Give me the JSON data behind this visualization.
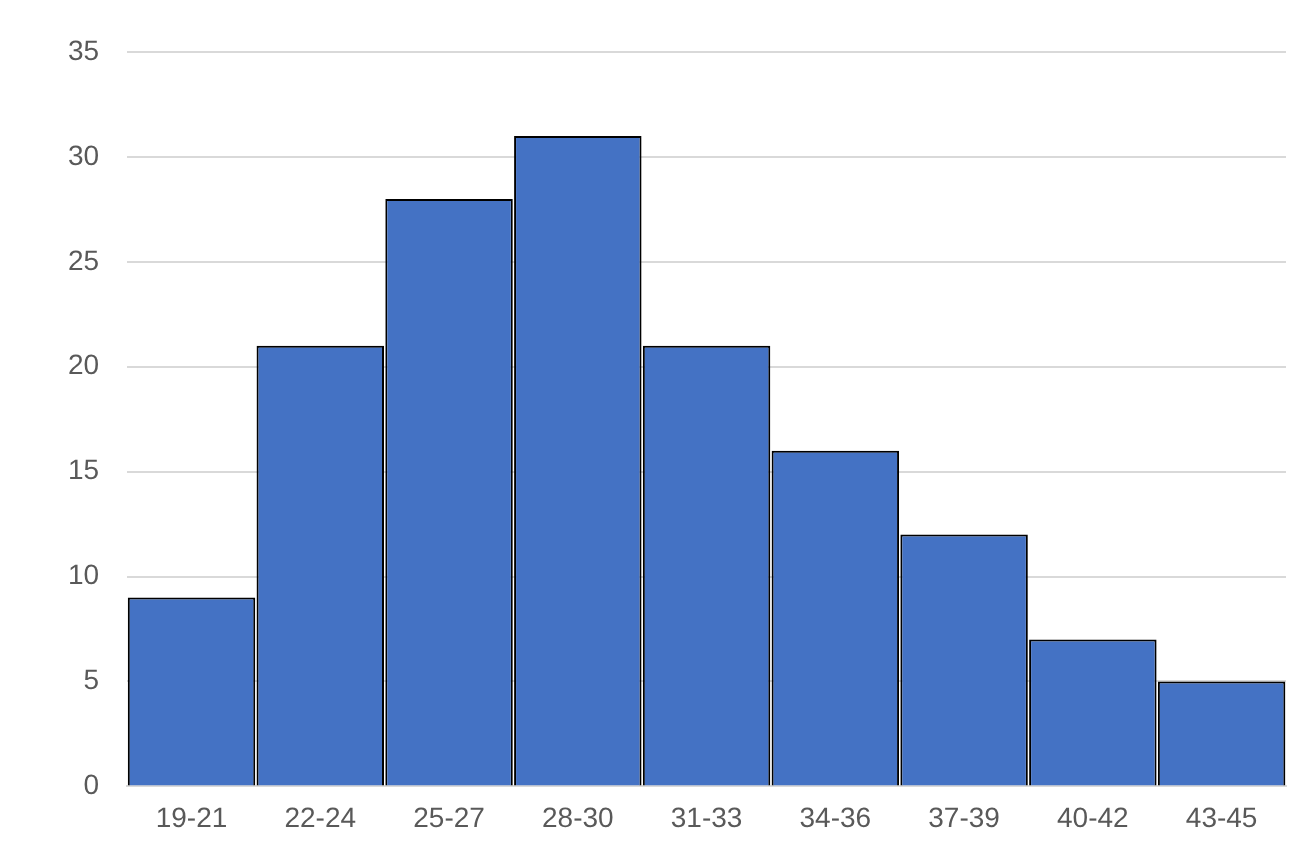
{
  "chart_data": {
    "type": "bar",
    "categories": [
      "19-21",
      "22-24",
      "25-27",
      "28-30",
      "31-33",
      "34-36",
      "37-39",
      "40-42",
      "43-45"
    ],
    "values": [
      9,
      21,
      28,
      31,
      21,
      16,
      12,
      7,
      5
    ],
    "color": "#4472c4",
    "ylim": [
      0,
      35
    ],
    "yticks": [
      0,
      5,
      10,
      15,
      20,
      25,
      30,
      35
    ],
    "grid": "y",
    "legend": false
  }
}
